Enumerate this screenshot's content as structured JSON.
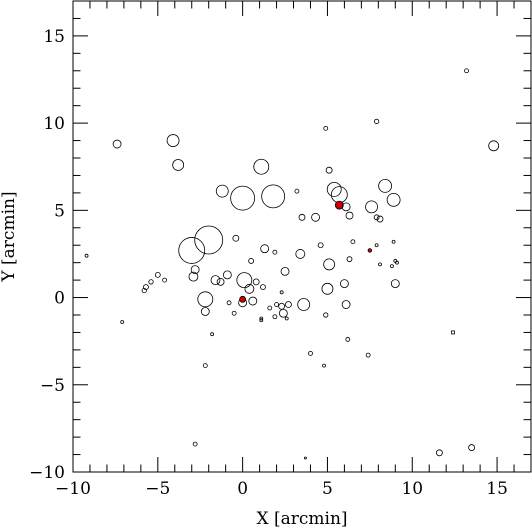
{
  "chart_data": {
    "type": "scatter",
    "title": "",
    "xlabel": "X [arcmin]",
    "ylabel": "Y [arcmin]",
    "xlim": [
      -10,
      17
    ],
    "ylim": [
      -10,
      17
    ],
    "xticks_major": [
      -10,
      -5,
      0,
      5,
      10,
      15
    ],
    "yticks_major": [
      -10,
      -5,
      0,
      5,
      10,
      15
    ],
    "xtick_labels": [
      "−10",
      "−5",
      "0",
      "5",
      "10",
      "15"
    ],
    "ytick_labels": [
      "−10",
      "−5",
      "0",
      "5",
      "10",
      "15"
    ],
    "minor_tick_step": 1,
    "grid": false,
    "legend": "none",
    "colors": {
      "open_marker": "#000000",
      "highlight": "#cc0000",
      "axes": "#000000"
    },
    "points": [
      {
        "x": -9.2,
        "y": 2.4,
        "r": 1.5,
        "marker": "circle"
      },
      {
        "x": -7.4,
        "y": 8.8,
        "r": 4,
        "marker": "circle"
      },
      {
        "x": -7.1,
        "y": -1.4,
        "r": 1.5,
        "marker": "circle"
      },
      {
        "x": -5.8,
        "y": 0.4,
        "r": 2.2,
        "marker": "circle"
      },
      {
        "x": -5.7,
        "y": 0.6,
        "r": 2.5,
        "marker": "circle"
      },
      {
        "x": -5.4,
        "y": 0.9,
        "r": 2.2,
        "marker": "circle"
      },
      {
        "x": -5.0,
        "y": 1.3,
        "r": 2.5,
        "marker": "circle"
      },
      {
        "x": -4.6,
        "y": 1.0,
        "r": 2,
        "marker": "circle"
      },
      {
        "x": -4.1,
        "y": 9.0,
        "r": 6,
        "marker": "circle"
      },
      {
        "x": -3.8,
        "y": 7.6,
        "r": 5.5,
        "marker": "circle"
      },
      {
        "x": -3.0,
        "y": 2.7,
        "r": 13,
        "marker": "circle"
      },
      {
        "x": -2.9,
        "y": 1.2,
        "r": 4.5,
        "marker": "circle"
      },
      {
        "x": -2.8,
        "y": 1.6,
        "r": 4,
        "marker": "circle"
      },
      {
        "x": -2.8,
        "y": -8.4,
        "r": 2,
        "marker": "circle"
      },
      {
        "x": -2.0,
        "y": 3.3,
        "r": 14,
        "marker": "circle"
      },
      {
        "x": -2.2,
        "y": -0.1,
        "r": 7.5,
        "marker": "circle"
      },
      {
        "x": -2.2,
        "y": -0.8,
        "r": 4,
        "marker": "circle"
      },
      {
        "x": -2.2,
        "y": -3.9,
        "r": 2,
        "marker": "circle"
      },
      {
        "x": -1.8,
        "y": -2.1,
        "r": 1.5,
        "marker": "circle"
      },
      {
        "x": -1.6,
        "y": 1.0,
        "r": 4.5,
        "marker": "circle"
      },
      {
        "x": -1.3,
        "y": 0.9,
        "r": 3.5,
        "marker": "circle"
      },
      {
        "x": -1.2,
        "y": 6.1,
        "r": 6,
        "marker": "circle"
      },
      {
        "x": -0.9,
        "y": 1.3,
        "r": 4,
        "marker": "circle"
      },
      {
        "x": -0.8,
        "y": -0.3,
        "r": 2,
        "marker": "circle"
      },
      {
        "x": -0.5,
        "y": -0.9,
        "r": 2,
        "marker": "circle"
      },
      {
        "x": -0.4,
        "y": 3.4,
        "r": 3,
        "marker": "circle"
      },
      {
        "x": 0.0,
        "y": 5.7,
        "r": 12,
        "marker": "circle"
      },
      {
        "x": 0.1,
        "y": 1.0,
        "r": 7.5,
        "marker": "circle"
      },
      {
        "x": 0.0,
        "y": -0.3,
        "r": 4,
        "marker": "circle"
      },
      {
        "x": 0.0,
        "y": -0.1,
        "r": 3,
        "marker": "filled",
        "color": "#cc0000"
      },
      {
        "x": 0.4,
        "y": 0.5,
        "r": 4.5,
        "marker": "circle"
      },
      {
        "x": 0.5,
        "y": 2.1,
        "r": 2.5,
        "marker": "circle"
      },
      {
        "x": 0.6,
        "y": -0.2,
        "r": 4,
        "marker": "circle"
      },
      {
        "x": 0.8,
        "y": 0.9,
        "r": 3,
        "marker": "circle"
      },
      {
        "x": 1.1,
        "y": 7.5,
        "r": 7.5,
        "marker": "circle"
      },
      {
        "x": 1.2,
        "y": 0.6,
        "r": 2.5,
        "marker": "circle"
      },
      {
        "x": 1.3,
        "y": 2.8,
        "r": 4,
        "marker": "circle"
      },
      {
        "x": 1.1,
        "y": -1.3,
        "r": 1.5,
        "marker": "circle"
      },
      {
        "x": 1.1,
        "y": -1.2,
        "r": 1.5,
        "marker": "circle"
      },
      {
        "x": 1.6,
        "y": -0.6,
        "r": 2,
        "marker": "circle"
      },
      {
        "x": 1.8,
        "y": 5.8,
        "r": 11.5,
        "marker": "circle"
      },
      {
        "x": 1.9,
        "y": 2.6,
        "r": 2,
        "marker": "circle"
      },
      {
        "x": 1.9,
        "y": -1.1,
        "r": 2,
        "marker": "circle"
      },
      {
        "x": 2.0,
        "y": -0.4,
        "r": 2,
        "marker": "circle"
      },
      {
        "x": 2.3,
        "y": 0.3,
        "r": 1.5,
        "marker": "circle"
      },
      {
        "x": 2.3,
        "y": -0.5,
        "r": 3,
        "marker": "circle"
      },
      {
        "x": 2.4,
        "y": -0.9,
        "r": 4,
        "marker": "circle"
      },
      {
        "x": 2.5,
        "y": 1.5,
        "r": 4,
        "marker": "circle"
      },
      {
        "x": 2.6,
        "y": -1.2,
        "r": 1.5,
        "marker": "circle"
      },
      {
        "x": 2.7,
        "y": -0.4,
        "r": 3,
        "marker": "circle"
      },
      {
        "x": 3.2,
        "y": 6.1,
        "r": 2,
        "marker": "circle"
      },
      {
        "x": 3.4,
        "y": 2.5,
        "r": 4.5,
        "marker": "circle"
      },
      {
        "x": 3.5,
        "y": 4.6,
        "r": 3,
        "marker": "circle"
      },
      {
        "x": 3.6,
        "y": -0.4,
        "r": 6,
        "marker": "circle"
      },
      {
        "x": 3.7,
        "y": -9.2,
        "r": 1,
        "marker": "circle"
      },
      {
        "x": 4.0,
        "y": -3.2,
        "r": 2,
        "marker": "circle"
      },
      {
        "x": 4.3,
        "y": 4.6,
        "r": 4,
        "marker": "circle"
      },
      {
        "x": 4.6,
        "y": 3.0,
        "r": 2.5,
        "marker": "circle"
      },
      {
        "x": 4.8,
        "y": -3.9,
        "r": 1.5,
        "marker": "circle"
      },
      {
        "x": 4.9,
        "y": 9.7,
        "r": 2,
        "marker": "circle"
      },
      {
        "x": 4.9,
        "y": -1.0,
        "r": 2.2,
        "marker": "circle"
      },
      {
        "x": 5.0,
        "y": 0.5,
        "r": 5.5,
        "marker": "circle"
      },
      {
        "x": 5.1,
        "y": 7.3,
        "r": 3,
        "marker": "circle"
      },
      {
        "x": 5.1,
        "y": 1.9,
        "r": 5.5,
        "marker": "circle"
      },
      {
        "x": 5.4,
        "y": 6.2,
        "r": 7,
        "marker": "circle"
      },
      {
        "x": 5.7,
        "y": 5.9,
        "r": 8,
        "marker": "circle"
      },
      {
        "x": 5.7,
        "y": 5.3,
        "r": 4,
        "marker": "filled",
        "color": "#cc0000"
      },
      {
        "x": 6.0,
        "y": 0.8,
        "r": 4,
        "marker": "circle"
      },
      {
        "x": 6.1,
        "y": 5.2,
        "r": 4,
        "marker": "circle"
      },
      {
        "x": 6.1,
        "y": -0.4,
        "r": 4,
        "marker": "circle"
      },
      {
        "x": 6.2,
        "y": -2.4,
        "r": 2,
        "marker": "circle"
      },
      {
        "x": 6.3,
        "y": 2.2,
        "r": 2.5,
        "marker": "circle"
      },
      {
        "x": 6.3,
        "y": 4.7,
        "r": 3.5,
        "marker": "circle"
      },
      {
        "x": 6.5,
        "y": 3.2,
        "r": 2,
        "marker": "circle"
      },
      {
        "x": 7.4,
        "y": -3.3,
        "r": 2,
        "marker": "circle"
      },
      {
        "x": 7.5,
        "y": 2.7,
        "r": 1.8,
        "marker": "filled",
        "color": "#cc0000"
      },
      {
        "x": 7.6,
        "y": 5.2,
        "r": 6,
        "marker": "circle"
      },
      {
        "x": 7.9,
        "y": 10.1,
        "r": 2.2,
        "marker": "circle"
      },
      {
        "x": 7.9,
        "y": 3.0,
        "r": 1.5,
        "marker": "circle"
      },
      {
        "x": 7.9,
        "y": 4.6,
        "r": 2.5,
        "marker": "circle"
      },
      {
        "x": 8.1,
        "y": 4.5,
        "r": 3,
        "marker": "circle"
      },
      {
        "x": 8.1,
        "y": 1.9,
        "r": 1.5,
        "marker": "circle"
      },
      {
        "x": 8.4,
        "y": 6.4,
        "r": 6.5,
        "marker": "circle"
      },
      {
        "x": 8.8,
        "y": 1.8,
        "r": 1.5,
        "marker": "circle"
      },
      {
        "x": 8.9,
        "y": 3.2,
        "r": 1.5,
        "marker": "circle"
      },
      {
        "x": 8.9,
        "y": 5.6,
        "r": 6.5,
        "marker": "circle"
      },
      {
        "x": 9.0,
        "y": 2.1,
        "r": 1.5,
        "marker": "circle"
      },
      {
        "x": 9.1,
        "y": 2.0,
        "r": 1.5,
        "marker": "circle"
      },
      {
        "x": 9.0,
        "y": 0.8,
        "r": 4,
        "marker": "circle"
      },
      {
        "x": 11.6,
        "y": -8.9,
        "r": 3,
        "marker": "circle"
      },
      {
        "x": 12.4,
        "y": -2.0,
        "r": 1.5,
        "marker": "square"
      },
      {
        "x": 13.2,
        "y": 13.0,
        "r": 2,
        "marker": "circle"
      },
      {
        "x": 13.5,
        "y": -8.6,
        "r": 3,
        "marker": "circle"
      },
      {
        "x": 14.8,
        "y": 8.7,
        "r": 5,
        "marker": "circle"
      }
    ]
  }
}
